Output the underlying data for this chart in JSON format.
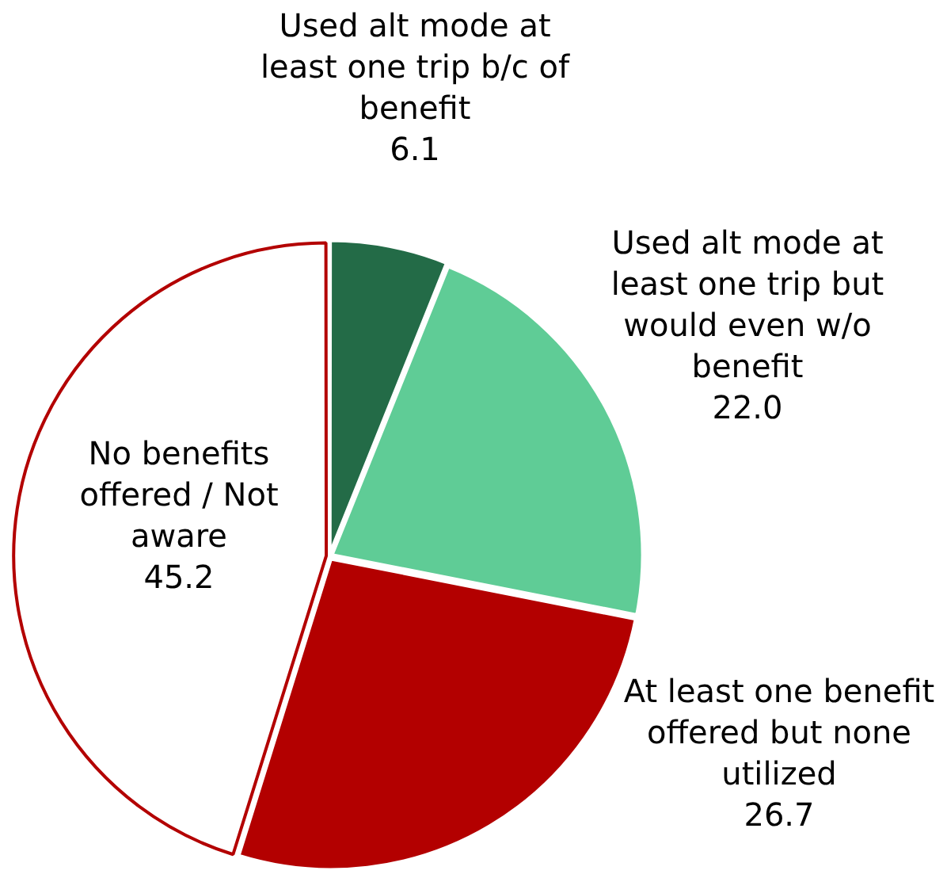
{
  "chart_data": {
    "type": "pie",
    "categories": [
      "Used alt mode at least one trip b/c of benefit",
      "Used alt mode at least one trip but would even w/o benefit",
      "At least one benefit offered but none utilized",
      "No benefits offered / Not aware"
    ],
    "values": [
      6.1,
      22.0,
      26.7,
      45.2
    ],
    "colors": [
      "#236b47",
      "#5fcc96",
      "#b30000",
      "#ffffff"
    ],
    "value_labels": [
      "6.1",
      "22.0",
      "26.7",
      "45.2"
    ],
    "legend": false
  }
}
